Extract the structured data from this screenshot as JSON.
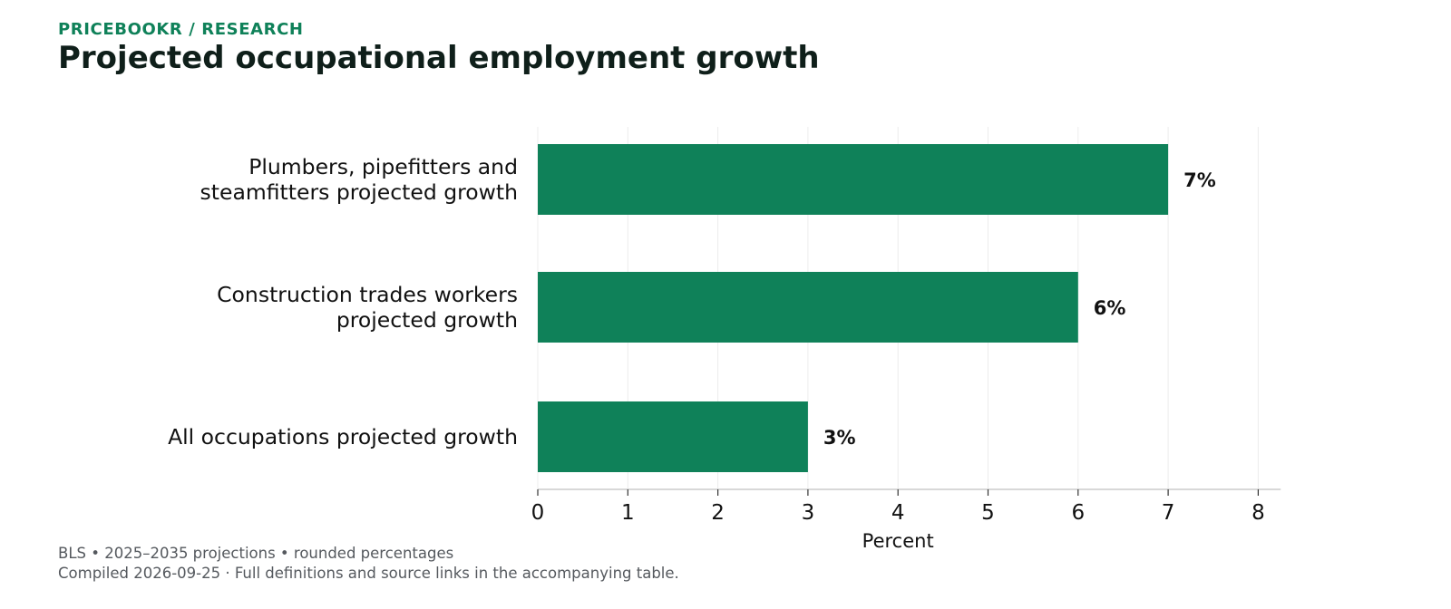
{
  "header": {
    "kicker": "PRICEBOOKR / RESEARCH",
    "title": "Projected occupational employment growth"
  },
  "footer": {
    "line1": "BLS • 2025–2035 projections • rounded percentages",
    "line2": "Compiled 2026-09-25 · Full definitions and source links in the accompanying table."
  },
  "colors": {
    "bar": "#0f8159",
    "text": "#111111",
    "grid": "#ececec",
    "axis": "#cccccc"
  },
  "chart_data": {
    "type": "bar",
    "orientation": "horizontal",
    "categories": [
      [
        "Plumbers, pipefitters and",
        "steamfitters projected growth"
      ],
      [
        "Construction trades workers",
        "projected growth"
      ],
      [
        "All occupations projected growth"
      ]
    ],
    "values": [
      7,
      6,
      3
    ],
    "data_labels": [
      "7%",
      "6%",
      "3%"
    ],
    "xlabel": "Percent",
    "ylabel": "",
    "xlim": [
      0,
      8.25
    ],
    "xticks": [
      "0",
      "1",
      "2",
      "3",
      "4",
      "5",
      "6",
      "7",
      "8"
    ],
    "grid": "vertical"
  }
}
